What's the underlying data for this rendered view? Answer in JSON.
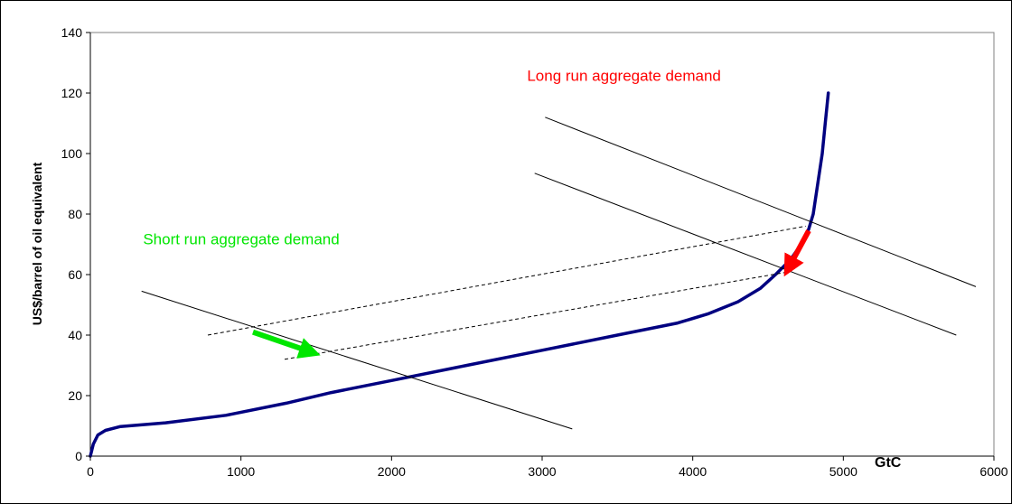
{
  "chart_data": {
    "type": "line",
    "title": "",
    "xlabel": "GtC",
    "ylabel": "US$/barrel of oil equivalent",
    "xlim": [
      0,
      6000
    ],
    "ylim": [
      0,
      140
    ],
    "x_ticks": [
      0,
      1000,
      2000,
      3000,
      4000,
      5000,
      6000
    ],
    "y_ticks": [
      0,
      20,
      40,
      60,
      80,
      100,
      120,
      140
    ],
    "grid": false,
    "legend": "none",
    "series": [
      {
        "color": "#000080",
        "style": "thick",
        "points": [
          [
            0,
            0
          ],
          [
            20,
            4
          ],
          [
            50,
            7
          ],
          [
            100,
            8.5
          ],
          [
            200,
            9.8
          ],
          [
            500,
            11
          ],
          [
            900,
            13.5
          ],
          [
            1300,
            17.5
          ],
          [
            1600,
            21
          ],
          [
            2000,
            25
          ],
          [
            2500,
            30
          ],
          [
            3000,
            35
          ],
          [
            3500,
            40
          ],
          [
            3900,
            44
          ],
          [
            4100,
            47
          ],
          [
            4300,
            51
          ],
          [
            4450,
            55.5
          ],
          [
            4550,
            60
          ],
          [
            4650,
            65
          ],
          [
            4720,
            70
          ],
          [
            4770,
            75
          ],
          [
            4800,
            80
          ],
          [
            4830,
            90
          ],
          [
            4860,
            100
          ],
          [
            4880,
            110
          ],
          [
            4900,
            120
          ]
        ]
      },
      {
        "color": "#000000",
        "style": "thin",
        "points": [
          [
            340,
            54.5
          ],
          [
            3200,
            9
          ]
        ]
      },
      {
        "color": "#000000",
        "style": "thin",
        "points": [
          [
            2950,
            93.5
          ],
          [
            5750,
            40
          ]
        ]
      },
      {
        "color": "#000000",
        "style": "thin",
        "points": [
          [
            3020,
            112
          ],
          [
            5880,
            56
          ]
        ]
      },
      {
        "color": "#000000",
        "style": "dashed",
        "points": [
          [
            780,
            40
          ],
          [
            4750,
            76
          ]
        ]
      },
      {
        "color": "#000000",
        "style": "dashed",
        "points": [
          [
            1290,
            32
          ],
          [
            4650,
            61
          ]
        ]
      }
    ],
    "annotations": [
      {
        "text": "Long run aggregate demand",
        "color": "#ff0000",
        "x": 2900,
        "y": 124
      },
      {
        "text": "Short run aggregate demand",
        "color": "#00e600",
        "x": 350,
        "y": 70
      }
    ],
    "arrows": [
      {
        "color": "#00e600",
        "from": [
          1080,
          41
        ],
        "to": [
          1460,
          34.5
        ]
      },
      {
        "color": "#ff0000",
        "from": [
          4770,
          74.5
        ],
        "to": [
          4640,
          62.5
        ]
      }
    ]
  }
}
